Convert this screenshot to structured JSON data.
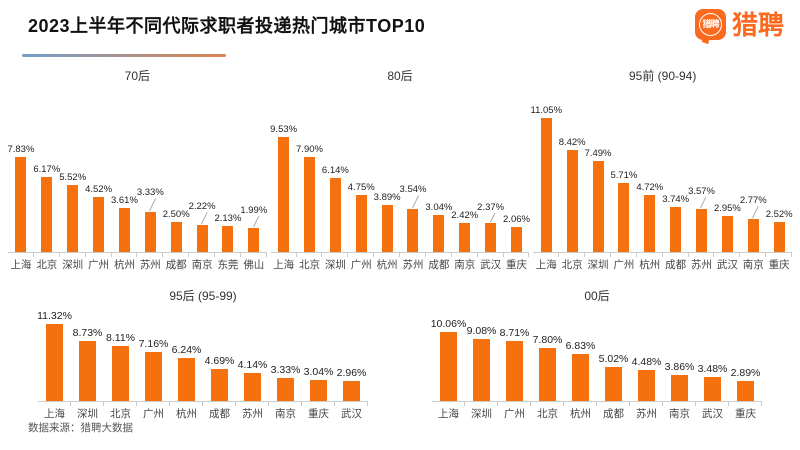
{
  "header": {
    "title": "2023上半年不同代际求职者投递热门城市TOP10",
    "logo": {
      "brand_text": "猎聘",
      "bubble_text": "猎聘"
    }
  },
  "footer": {
    "source": "数据来源：猎聘大数据"
  },
  "colors": {
    "bar": "#F5710D",
    "brand_orange": "#FB6A1E",
    "underline_gradient_start": "#6F9EC9",
    "underline_gradient_end": "#E0854D",
    "axis_line": "#CCCCCC",
    "value_label": "#222222",
    "city_label": "#444444"
  },
  "chart_data": [
    {
      "type": "bar",
      "title": "70后",
      "categories": [
        "上海",
        "北京",
        "深圳",
        "广州",
        "杭州",
        "苏州",
        "成都",
        "南京",
        "东莞",
        "佛山"
      ],
      "values": [
        7.83,
        6.17,
        5.52,
        4.52,
        3.61,
        3.33,
        2.5,
        2.22,
        2.13,
        1.99
      ],
      "unit": "%",
      "ylim": [
        0,
        12
      ],
      "grid": false,
      "legend": "none"
    },
    {
      "type": "bar",
      "title": "80后",
      "categories": [
        "上海",
        "北京",
        "深圳",
        "广州",
        "杭州",
        "苏州",
        "成都",
        "南京",
        "武汉",
        "重庆"
      ],
      "values": [
        9.53,
        7.9,
        6.14,
        4.75,
        3.89,
        3.54,
        3.04,
        2.42,
        2.37,
        2.06
      ],
      "unit": "%",
      "ylim": [
        0,
        12
      ],
      "grid": false,
      "legend": "none"
    },
    {
      "type": "bar",
      "title": "95前 (90-94)",
      "categories": [
        "上海",
        "北京",
        "深圳",
        "广州",
        "杭州",
        "成都",
        "苏州",
        "武汉",
        "南京",
        "重庆"
      ],
      "values": [
        11.05,
        8.42,
        7.49,
        5.71,
        4.72,
        3.74,
        3.57,
        2.95,
        2.77,
        2.52
      ],
      "unit": "%",
      "ylim": [
        0,
        12
      ],
      "grid": false,
      "legend": "none"
    },
    {
      "type": "bar",
      "title": "95后 (95-99)",
      "categories": [
        "上海",
        "深圳",
        "北京",
        "广州",
        "杭州",
        "成都",
        "苏州",
        "南京",
        "重庆",
        "武汉"
      ],
      "values": [
        11.32,
        8.73,
        8.11,
        7.16,
        6.24,
        4.69,
        4.14,
        3.33,
        3.04,
        2.96
      ],
      "unit": "%",
      "ylim": [
        0,
        12
      ],
      "grid": false,
      "legend": "none"
    },
    {
      "type": "bar",
      "title": "00后",
      "categories": [
        "上海",
        "深圳",
        "广州",
        "北京",
        "杭州",
        "成都",
        "苏州",
        "南京",
        "武汉",
        "重庆"
      ],
      "values": [
        10.06,
        9.08,
        8.71,
        7.8,
        6.83,
        5.02,
        4.48,
        3.86,
        3.48,
        2.89
      ],
      "unit": "%",
      "ylim": [
        0,
        12
      ],
      "grid": false,
      "legend": "none"
    }
  ]
}
